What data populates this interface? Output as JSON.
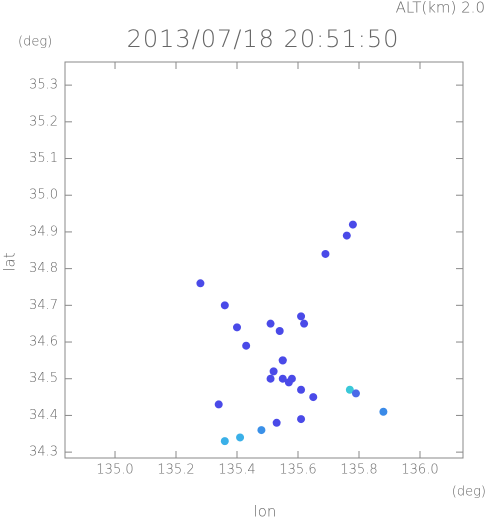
{
  "chart_data": {
    "type": "scatter",
    "title": "2013/07/18 20:51:50",
    "subtitle": "ALT(km) 2.0",
    "y_unit": "(deg)",
    "x_unit": "(deg)",
    "x_label": "lon",
    "y_label": "lat",
    "xlim": [
      134.836,
      136.141
    ],
    "ylim": [
      34.284,
      35.363
    ],
    "xticks": [
      {
        "value": 135,
        "label": "135.0"
      },
      135.2,
      135.4,
      135.6,
      135.8,
      {
        "value": 136,
        "label": "136.0"
      }
    ],
    "yticks": [
      34.3,
      34.4,
      34.5,
      34.6,
      34.7,
      34.8,
      34.9,
      {
        "value": 35,
        "label": "35.0"
      },
      35.1,
      35.2,
      35.3
    ],
    "x": [
      135.28,
      135.78,
      135.76,
      135.69,
      135.36,
      135.4,
      135.43,
      135.51,
      135.61,
      135.62,
      135.54,
      135.55,
      135.55,
      135.57,
      135.52,
      135.51,
      135.58,
      135.55,
      135.61,
      135.65,
      135.77,
      135.79,
      135.88,
      135.34,
      135.53,
      135.61,
      135.48,
      135.41,
      135.36
    ],
    "y": [
      34.76,
      34.92,
      34.89,
      34.84,
      34.7,
      34.64,
      34.59,
      34.65,
      34.67,
      34.65,
      34.63,
      34.55,
      34.5,
      34.49,
      34.52,
      34.5,
      34.5,
      34.55,
      34.47,
      34.45,
      34.47,
      34.46,
      34.41,
      34.43,
      34.38,
      34.39,
      34.36,
      34.34,
      34.33
    ],
    "point_colors": [
      "#4a4ae8",
      "#4a4ae8",
      "#4a4ae8",
      "#4a4ae8",
      "#4a4ae8",
      "#4a4ae8",
      "#4a4ae8",
      "#4a4ae8",
      "#4a4ae8",
      "#4a4ae8",
      "#4a4ae8",
      "#4a4ae8",
      "#4a4ae8",
      "#4a4ae8",
      "#4a4ae8",
      "#4a4ae8",
      "#4a4ae8",
      "#4a4ae8",
      "#4a4ae8",
      "#4a4ae8",
      "#3ac8d8",
      "#4a6ae8",
      "#3a8ae8",
      "#4a4ae8",
      "#4a4ae8",
      "#4a4ae8",
      "#3a90e8",
      "#3ab0e8",
      "#3ab0e8"
    ]
  }
}
